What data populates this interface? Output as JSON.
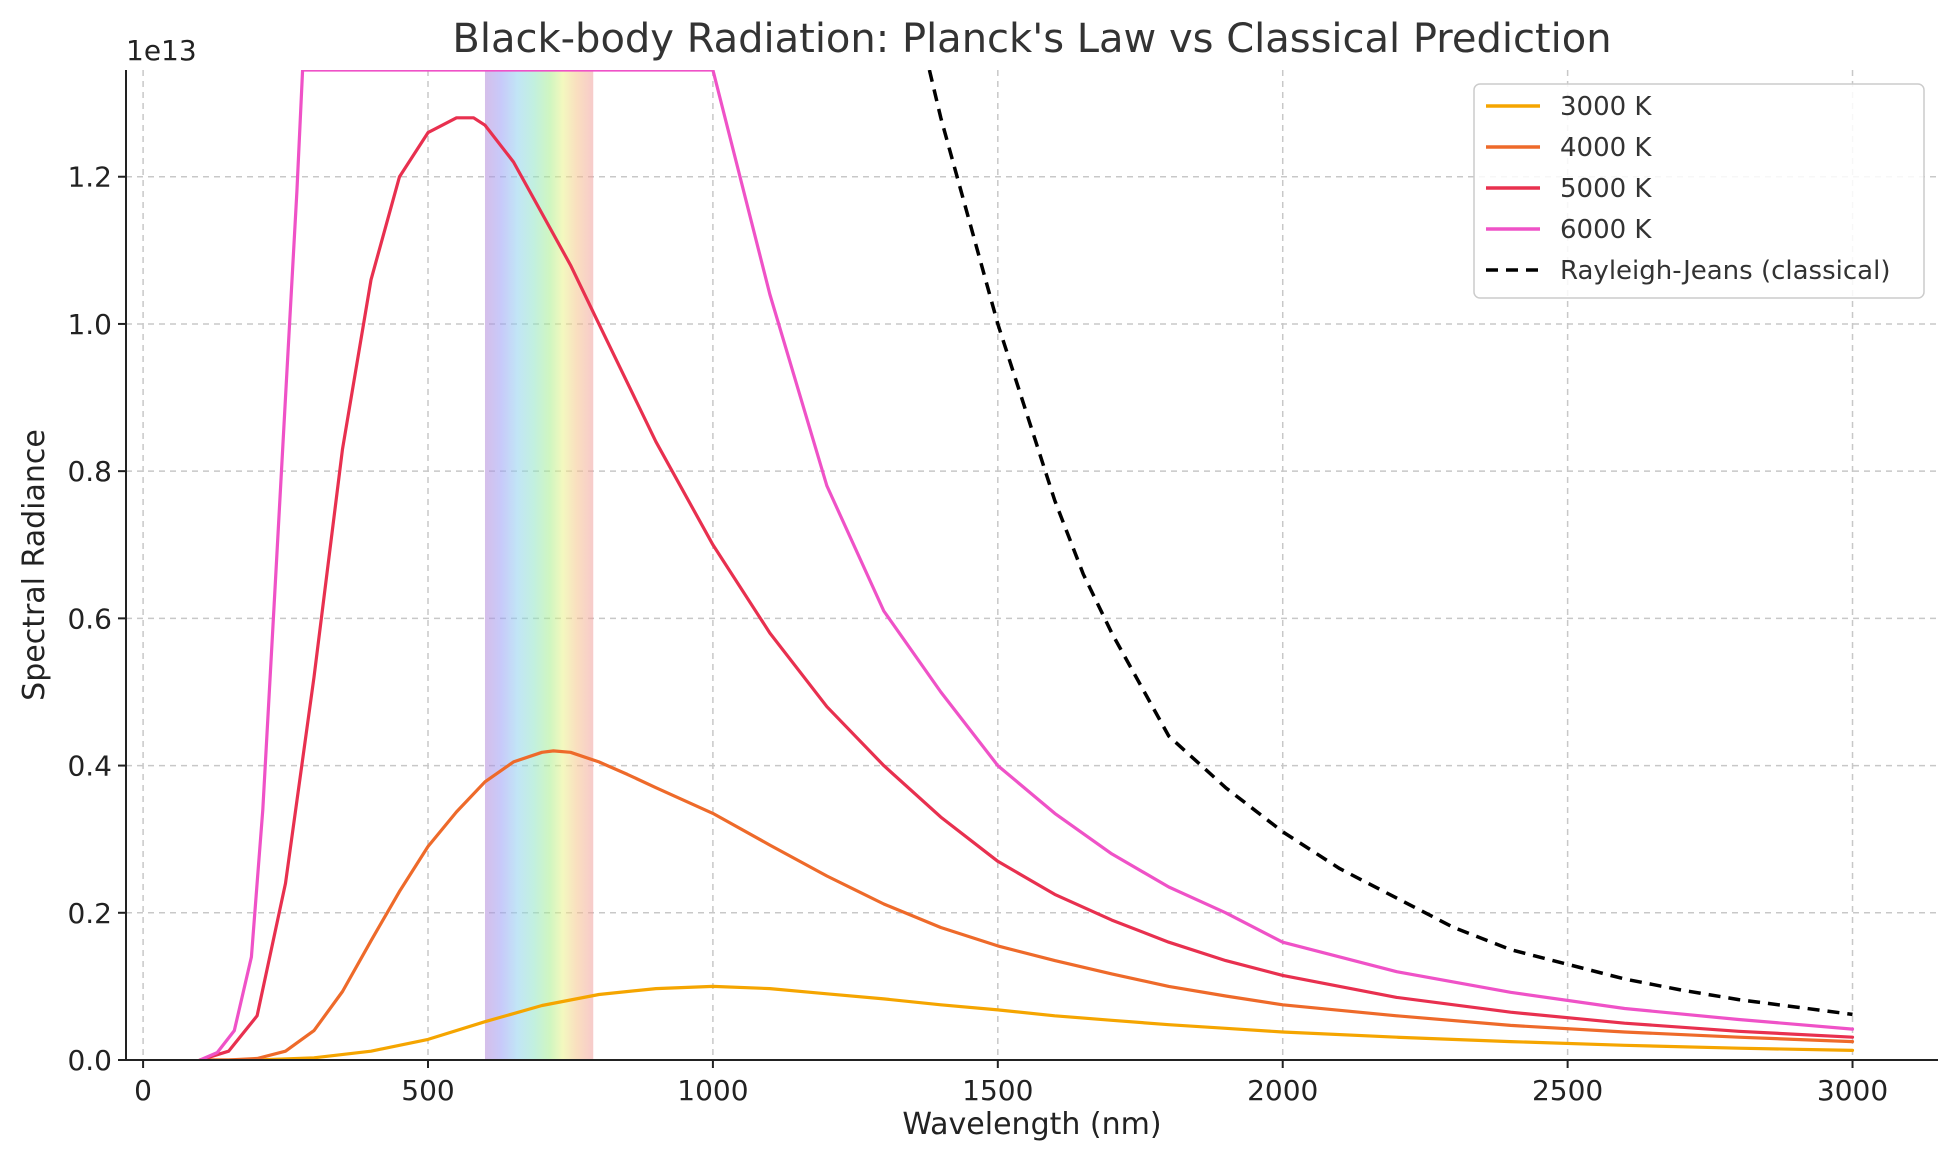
{
  "chart_data": {
    "type": "line",
    "title": "Black-body Radiation: Planck's Law vs Classical Prediction",
    "xlabel": "Wavelength (nm)",
    "ylabel": "Spectral Radiance",
    "y_offset_label": "1e13",
    "xlim": [
      -30,
      3150
    ],
    "ylim": [
      0,
      1.345
    ],
    "y_scale_factor": 10000000000000.0,
    "x_ticks": [
      0,
      500,
      1000,
      1500,
      2000,
      2500,
      3000
    ],
    "x_tick_labels": [
      "0",
      "500",
      "1000",
      "1500",
      "2000",
      "2500",
      "3000"
    ],
    "y_ticks": [
      0.0,
      0.2,
      0.4,
      0.6,
      0.8,
      1.0,
      1.2
    ],
    "y_tick_labels": [
      "0.0",
      "0.2",
      "0.4",
      "0.6",
      "0.8",
      "1.0",
      "1.2"
    ],
    "grid": true,
    "legend_position": "top-right",
    "visible_band": {
      "x_range": [
        600,
        790
      ]
    },
    "series": [
      {
        "name": "3000 K",
        "color": "#f5a500",
        "style": "solid",
        "x": [
          100,
          200,
          300,
          400,
          500,
          600,
          700,
          800,
          900,
          1000,
          1100,
          1200,
          1300,
          1400,
          1500,
          1600,
          1700,
          1800,
          1900,
          2000,
          2200,
          2400,
          2600,
          2800,
          3000
        ],
        "y": [
          0.0,
          0.0,
          0.003,
          0.012,
          0.028,
          0.052,
          0.074,
          0.089,
          0.097,
          0.1,
          0.097,
          0.09,
          0.083,
          0.075,
          0.068,
          0.06,
          0.054,
          0.048,
          0.043,
          0.038,
          0.031,
          0.025,
          0.02,
          0.016,
          0.013
        ]
      },
      {
        "name": "4000 K",
        "color": "#ee6a2a",
        "style": "solid",
        "x": [
          100,
          150,
          200,
          250,
          300,
          350,
          400,
          450,
          500,
          550,
          600,
          650,
          700,
          720,
          750,
          800,
          850,
          900,
          1000,
          1100,
          1200,
          1300,
          1400,
          1500,
          1600,
          1700,
          1800,
          1900,
          2000,
          2200,
          2400,
          2600,
          2800,
          3000
        ],
        "y": [
          0.0,
          0.0,
          0.002,
          0.012,
          0.04,
          0.093,
          0.162,
          0.229,
          0.29,
          0.337,
          0.378,
          0.405,
          0.418,
          0.42,
          0.418,
          0.405,
          0.388,
          0.37,
          0.335,
          0.292,
          0.25,
          0.212,
          0.18,
          0.155,
          0.135,
          0.117,
          0.1,
          0.087,
          0.075,
          0.06,
          0.047,
          0.038,
          0.031,
          0.025
        ]
      },
      {
        "name": "5000 K",
        "color": "#e8304f",
        "style": "solid",
        "x": [
          100,
          150,
          200,
          250,
          300,
          350,
          400,
          450,
          500,
          550,
          580,
          600,
          650,
          700,
          750,
          800,
          900,
          1000,
          1100,
          1200,
          1300,
          1400,
          1500,
          1600,
          1700,
          1800,
          1900,
          2000,
          2200,
          2400,
          2600,
          2800,
          3000
        ],
        "y": [
          0.0,
          0.012,
          0.06,
          0.24,
          0.52,
          0.83,
          1.06,
          1.2,
          1.26,
          1.28,
          1.28,
          1.27,
          1.22,
          1.15,
          1.08,
          1.0,
          0.84,
          0.7,
          0.58,
          0.48,
          0.4,
          0.33,
          0.27,
          0.225,
          0.19,
          0.16,
          0.135,
          0.115,
          0.085,
          0.065,
          0.05,
          0.039,
          0.031
        ]
      },
      {
        "name": "6000 K",
        "color": "#ef52c7",
        "style": "solid",
        "x": [
          100,
          130,
          160,
          190,
          210,
          230,
          250,
          270,
          280,
          1000,
          1100,
          1200,
          1300,
          1400,
          1500,
          1600,
          1700,
          1800,
          1900,
          2000,
          2200,
          2400,
          2600,
          2800,
          3000
        ],
        "y": [
          0.0,
          0.01,
          0.04,
          0.14,
          0.34,
          0.62,
          0.9,
          1.18,
          1.345,
          1.345,
          1.04,
          0.78,
          0.61,
          0.5,
          0.4,
          0.335,
          0.28,
          0.235,
          0.2,
          0.16,
          0.12,
          0.092,
          0.07,
          0.055,
          0.042
        ]
      },
      {
        "name": "Rayleigh-Jeans (classical)",
        "color": "#000000",
        "style": "dashed",
        "x": [
          1380,
          1400,
          1450,
          1500,
          1550,
          1600,
          1650,
          1700,
          1750,
          1800,
          1900,
          2000,
          2100,
          2200,
          2300,
          2400,
          2500,
          2600,
          2700,
          2800,
          2900,
          3000
        ],
        "y": [
          1.345,
          1.28,
          1.14,
          1.0,
          0.88,
          0.76,
          0.66,
          0.58,
          0.51,
          0.44,
          0.37,
          0.31,
          0.26,
          0.22,
          0.18,
          0.15,
          0.13,
          0.11,
          0.095,
          0.082,
          0.072,
          0.062
        ]
      }
    ]
  }
}
